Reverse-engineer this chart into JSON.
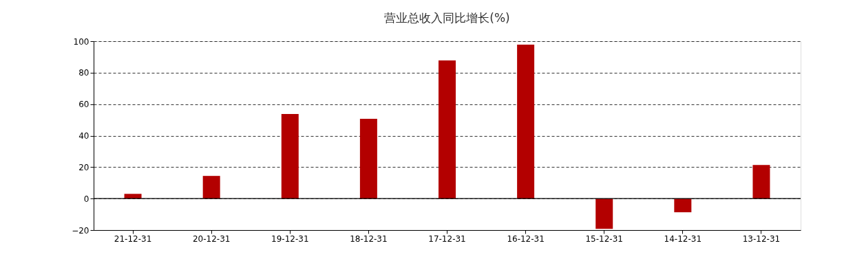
{
  "chart_data": {
    "type": "bar",
    "title": "营业总收入同比增长(%)",
    "categories": [
      "21-12-31",
      "20-12-31",
      "19-12-31",
      "18-12-31",
      "17-12-31",
      "16-12-31",
      "15-12-31",
      "14-12-31",
      "13-12-31"
    ],
    "values": [
      3,
      14.4,
      53.7,
      50.7,
      87.8,
      97.8,
      -19.2,
      -8.7,
      21.4
    ],
    "color": "#b30000",
    "ylim": [
      -20,
      100
    ],
    "yticks": [
      -20,
      0,
      20,
      40,
      60,
      80,
      100
    ],
    "grid": "y",
    "ref_lines": [
      {
        "axis": "y",
        "value": 0,
        "color": "#000000",
        "line_style": "solid"
      }
    ]
  }
}
